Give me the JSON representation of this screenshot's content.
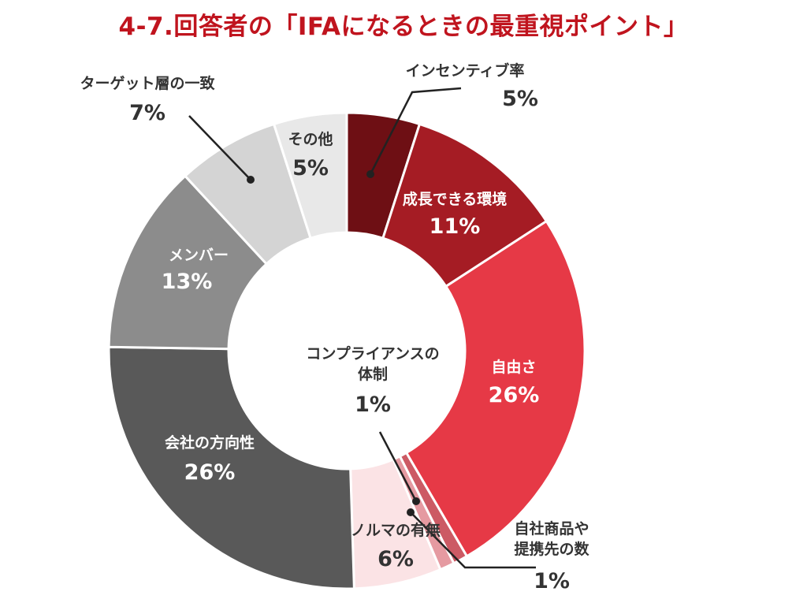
{
  "title": "4-7.回答者の「IFAになるときの最重視ポイント」",
  "chart_data": {
    "type": "pie",
    "donut": true,
    "title": "4-7.回答者の「IFAになるときの最重視ポイント」",
    "slices": [
      {
        "name": "インセンティブ率",
        "value": 5,
        "label": "5%",
        "color": "#6e0f14"
      },
      {
        "name": "成長できる環境",
        "value": 11,
        "label": "11%",
        "color": "#a51c24"
      },
      {
        "name": "自由さ",
        "value": 26,
        "label": "26%",
        "color": "#e63946"
      },
      {
        "name": "自社商品や提携先の数",
        "name_lines": [
          "自社商品や",
          "提携先の数"
        ],
        "value": 1,
        "label": "1%",
        "color": "#cc5a64"
      },
      {
        "name": "コンプライアンスの体制",
        "name_lines": [
          "コンプライアンスの",
          "体制"
        ],
        "value": 1,
        "label": "1%",
        "color": "#e59aa1"
      },
      {
        "name": "ノルマの有無",
        "value": 6,
        "label": "6%",
        "color": "#fbe3e5"
      },
      {
        "name": "会社の方向性",
        "value": 26,
        "label": "26%",
        "color": "#595959"
      },
      {
        "name": "メンバー",
        "value": 13,
        "label": "13%",
        "color": "#8c8c8c"
      },
      {
        "name": "ターゲット層の一致",
        "value": 7,
        "label": "7%",
        "color": "#d4d4d4"
      },
      {
        "name": "その他",
        "value": 5,
        "label": "5%",
        "color": "#e8e8e8"
      }
    ],
    "legend": "none"
  }
}
